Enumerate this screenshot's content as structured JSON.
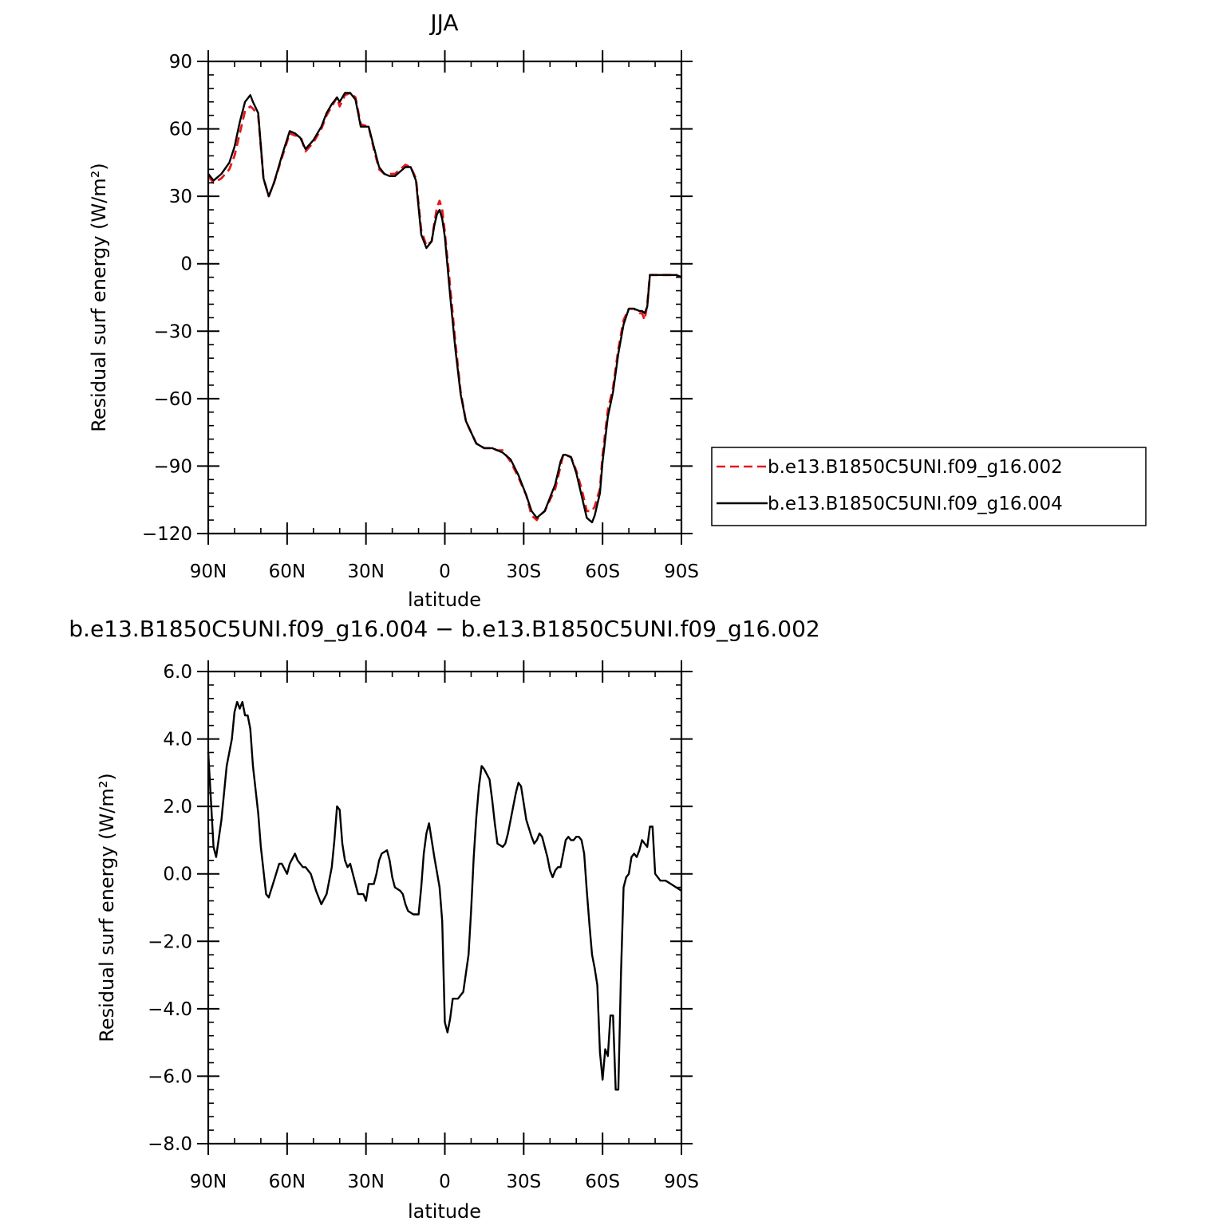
{
  "chart_data": [
    {
      "type": "line",
      "title": "JJA",
      "xlabel": "latitude",
      "ylabel": "Residual surf energy (W/m²)",
      "xlim": [
        90,
        -90
      ],
      "ylim": [
        -120,
        90
      ],
      "x_ticks": [
        {
          "value": 90,
          "label": "90N"
        },
        {
          "value": 60,
          "label": "60N"
        },
        {
          "value": 30,
          "label": "30N"
        },
        {
          "value": 0,
          "label": "0"
        },
        {
          "value": -30,
          "label": "30S"
        },
        {
          "value": -60,
          "label": "60S"
        },
        {
          "value": -90,
          "label": "90S"
        }
      ],
      "y_ticks": [
        {
          "value": 90,
          "label": "90"
        },
        {
          "value": 60,
          "label": "60"
        },
        {
          "value": 30,
          "label": "30"
        },
        {
          "value": 0,
          "label": "0"
        },
        {
          "value": -30,
          "label": "−30"
        },
        {
          "value": -60,
          "label": "−60"
        },
        {
          "value": -90,
          "label": "−90"
        },
        {
          "value": -120,
          "label": "−120"
        }
      ],
      "legend_position": "right",
      "series": [
        {
          "name": "b.e13.B1850C5UNI.f09_g16.002",
          "color": "#e41a1c",
          "dash": "dashed",
          "x": [
            90,
            88,
            85,
            82,
            80,
            78,
            76,
            74,
            73,
            71,
            69,
            67,
            65,
            62,
            59,
            57,
            55,
            53,
            50,
            47,
            45,
            43,
            41,
            40,
            38,
            36,
            34,
            32,
            29,
            27,
            25,
            23,
            21,
            19,
            17,
            15,
            13,
            11,
            9,
            7,
            5,
            4,
            3,
            2,
            1,
            0,
            -2,
            -4,
            -6,
            -8,
            -10,
            -12,
            -15,
            -18,
            -20,
            -22,
            -25,
            -28,
            -31,
            -33,
            -35,
            -36,
            -38,
            -40,
            -42,
            -44,
            -45,
            -46,
            -48,
            -50,
            -52,
            -54,
            -56,
            -57,
            -59,
            -60,
            -62,
            -64,
            -66,
            -68,
            -70,
            -72,
            -74,
            -75,
            -76,
            -77,
            -78,
            -80,
            -84,
            -88,
            -90
          ],
          "y": [
            39,
            36,
            38,
            42,
            48,
            58,
            68,
            70,
            69,
            66,
            38,
            30,
            36,
            47,
            58,
            57,
            57,
            50,
            54,
            60,
            66,
            70,
            74,
            70,
            75,
            76,
            74,
            62,
            61,
            51,
            42,
            40,
            40,
            40,
            42,
            44,
            43,
            38,
            15,
            8,
            10,
            18,
            25,
            28,
            24,
            14,
            -10,
            -35,
            -57,
            -70,
            -75,
            -80,
            -82,
            -82,
            -83,
            -83,
            -88,
            -95,
            -103,
            -112,
            -114,
            -112,
            -110,
            -105,
            -100,
            -90,
            -85,
            -85,
            -86,
            -92,
            -100,
            -110,
            -110,
            -108,
            -100,
            -85,
            -65,
            -55,
            -38,
            -25,
            -20,
            -20,
            -22,
            -22,
            -25,
            -18,
            -5,
            -5,
            -5,
            -5,
            -6
          ]
        },
        {
          "name": "b.e13.B1850C5UNI.f09_g16.004",
          "color": "#000000",
          "dash": "solid",
          "x": [
            90,
            88,
            85,
            82,
            80,
            78,
            76,
            74,
            73,
            71,
            69,
            67,
            65,
            62,
            59,
            57,
            55,
            53,
            50,
            47,
            45,
            43,
            41,
            40,
            38,
            36,
            34,
            32,
            29,
            27,
            25,
            23,
            21,
            19,
            17,
            15,
            13,
            11,
            9,
            7,
            5,
            4,
            3,
            2,
            1,
            0,
            -2,
            -4,
            -6,
            -8,
            -10,
            -12,
            -15,
            -18,
            -20,
            -22,
            -25,
            -28,
            -31,
            -33,
            -35,
            -36,
            -38,
            -40,
            -42,
            -44,
            -45,
            -46,
            -48,
            -50,
            -52,
            -54,
            -56,
            -57,
            -59,
            -60,
            -62,
            -64,
            -66,
            -68,
            -70,
            -72,
            -74,
            -75,
            -76,
            -77,
            -78,
            -80,
            -84,
            -88,
            -90
          ],
          "y": [
            40,
            37,
            40,
            45,
            52,
            63,
            72,
            75,
            72,
            67,
            38,
            30,
            36,
            48,
            59,
            58,
            56,
            51,
            55,
            61,
            67,
            71,
            74,
            72,
            76,
            76,
            73,
            61,
            61,
            52,
            43,
            40,
            39,
            39,
            41,
            43,
            43,
            37,
            13,
            7,
            10,
            17,
            22,
            24,
            20,
            12,
            -14,
            -38,
            -58,
            -70,
            -75,
            -80,
            -82,
            -82,
            -83,
            -84,
            -87,
            -94,
            -103,
            -110,
            -113,
            -112,
            -110,
            -104,
            -98,
            -88,
            -85,
            -85,
            -86,
            -93,
            -103,
            -113,
            -115,
            -112,
            -102,
            -88,
            -68,
            -57,
            -40,
            -27,
            -20,
            -20,
            -21,
            -21,
            -22,
            -19,
            -5,
            -5,
            -5,
            -5,
            -6
          ]
        }
      ]
    },
    {
      "type": "line",
      "title": "b.e13.B1850C5UNI.f09_g16.004 − b.e13.B1850C5UNI.f09_g16.002",
      "xlabel": "latitude",
      "ylabel": "Residual surf energy (W/m²)",
      "xlim": [
        90,
        -90
      ],
      "ylim": [
        -8,
        6
      ],
      "x_ticks": [
        {
          "value": 90,
          "label": "90N"
        },
        {
          "value": 60,
          "label": "60N"
        },
        {
          "value": 30,
          "label": "30N"
        },
        {
          "value": 0,
          "label": "0"
        },
        {
          "value": -30,
          "label": "30S"
        },
        {
          "value": -60,
          "label": "60S"
        },
        {
          "value": -90,
          "label": "90S"
        }
      ],
      "y_ticks": [
        {
          "value": 6,
          "label": "6.0"
        },
        {
          "value": 4,
          "label": "4.0"
        },
        {
          "value": 2,
          "label": "2.0"
        },
        {
          "value": 0,
          "label": "0.0"
        },
        {
          "value": -2,
          "label": "−2.0"
        },
        {
          "value": -4,
          "label": "−4.0"
        },
        {
          "value": -6,
          "label": "−6.0"
        },
        {
          "value": -8,
          "label": "−8.0"
        }
      ],
      "series": [
        {
          "color": "#000000",
          "dash": "solid",
          "x": [
            90,
            88,
            87,
            85,
            83,
            81,
            80,
            79,
            78,
            77,
            76,
            75,
            74,
            73,
            71,
            70,
            68,
            67,
            65,
            63,
            62,
            60,
            59,
            57,
            56,
            54,
            53,
            51,
            49,
            47,
            45,
            43,
            42,
            41,
            40,
            39,
            38,
            37,
            36,
            34,
            33,
            31,
            30,
            29,
            27,
            26,
            25,
            24,
            22,
            21,
            20,
            19,
            17,
            16,
            15,
            14,
            12,
            10,
            9,
            8,
            7,
            6,
            4,
            2,
            1,
            0,
            -1,
            -2,
            -3,
            -5,
            -6,
            -7,
            -9,
            -10,
            -11,
            -12,
            -13,
            -14,
            -15,
            -17,
            -18,
            -19,
            -20,
            -22,
            -23,
            -24,
            -25,
            -26,
            -27,
            -28,
            -29,
            -30,
            -31,
            -33,
            -34,
            -35,
            -36,
            -37,
            -38,
            -39,
            -40,
            -41,
            -42,
            -43,
            -44,
            -45,
            -46,
            -47,
            -48,
            -49,
            -50,
            -51,
            -52,
            -53,
            -54,
            -55,
            -56,
            -57,
            -58,
            -59,
            -60,
            -61,
            -62,
            -63,
            -64,
            -65,
            -66,
            -67,
            -68,
            -69,
            -70,
            -71,
            -72,
            -73,
            -74,
            -75,
            -76,
            -77,
            -78,
            -79,
            -80,
            -82,
            -84,
            -86,
            -88,
            -90
          ],
          "y": [
            3.6,
            0.8,
            0.5,
            1.6,
            3.2,
            4.0,
            4.8,
            5.1,
            4.9,
            5.1,
            4.7,
            4.7,
            4.3,
            3.2,
            1.8,
            0.8,
            -0.6,
            -0.7,
            -0.2,
            0.3,
            0.3,
            0.0,
            0.3,
            0.6,
            0.4,
            0.2,
            0.2,
            0.0,
            -0.5,
            -0.9,
            -0.6,
            0.2,
            1.0,
            2.0,
            1.9,
            0.9,
            0.4,
            0.2,
            0.3,
            -0.3,
            -0.6,
            -0.6,
            -0.8,
            -0.3,
            -0.3,
            0.0,
            0.4,
            0.6,
            0.7,
            0.4,
            -0.1,
            -0.4,
            -0.5,
            -0.6,
            -0.9,
            -1.1,
            -1.2,
            -1.2,
            -0.4,
            0.6,
            1.2,
            1.5,
            0.5,
            -0.4,
            -1.4,
            -4.4,
            -4.7,
            -4.3,
            -3.7,
            -3.7,
            -3.6,
            -3.5,
            -2.4,
            -1.1,
            0.5,
            1.7,
            2.6,
            3.2,
            3.1,
            2.8,
            2.2,
            1.5,
            0.9,
            0.8,
            0.9,
            1.2,
            1.6,
            2.0,
            2.4,
            2.7,
            2.6,
            2.1,
            1.6,
            1.1,
            0.9,
            1.0,
            1.2,
            1.1,
            0.8,
            0.5,
            0.1,
            -0.1,
            0.1,
            0.2,
            0.2,
            0.6,
            1.0,
            1.1,
            1.0,
            1.0,
            1.1,
            1.1,
            1.0,
            0.6,
            -0.5,
            -1.5,
            -2.4,
            -2.8,
            -3.3,
            -5.3,
            -6.1,
            -5.2,
            -5.4,
            -4.2,
            -4.2,
            -6.4,
            -6.4,
            -3.0,
            -0.4,
            -0.1,
            0.0,
            0.5,
            0.6,
            0.5,
            0.7,
            1.0,
            0.9,
            0.8,
            1.4,
            1.4,
            0.0,
            -0.2,
            -0.2,
            -0.3,
            -0.4,
            -0.5
          ]
        }
      ]
    }
  ]
}
